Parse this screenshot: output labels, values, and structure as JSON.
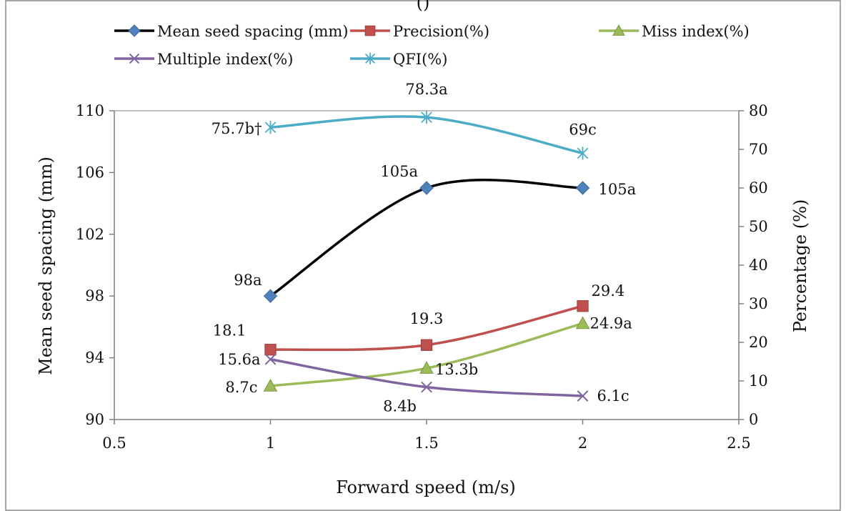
{
  "chart_data": {
    "type": "line",
    "title": "",
    "top_fragment": "()",
    "xlabel": "Forward speed   (m/s)",
    "ylabel_left": "Mean seed spacing (mm)",
    "ylabel_right": "Percentage (%)",
    "xlim": [
      0.5,
      2.5
    ],
    "x_ticks": [
      0.5,
      1,
      1.5,
      2,
      2.5
    ],
    "x_tick_labels": [
      "0.5",
      "1",
      "1.5",
      "2",
      "2.5"
    ],
    "ylim_left": [
      90,
      110
    ],
    "y_left_ticks": [
      90,
      94,
      98,
      102,
      106,
      110
    ],
    "y_left_tick_labels": [
      "90",
      "94",
      "98",
      "102",
      "106",
      "110"
    ],
    "ylim_right": [
      0,
      80
    ],
    "y_right_ticks": [
      0,
      10,
      20,
      30,
      40,
      50,
      60,
      70,
      80
    ],
    "y_right_tick_labels": [
      "0",
      "10",
      "20",
      "30",
      "40",
      "50",
      "60",
      "70",
      "80"
    ],
    "grid": false,
    "legend_position": "top",
    "smooth": true,
    "x": [
      1,
      1.5,
      2
    ],
    "series": [
      {
        "name": "Mean seed spacing (mm)",
        "axis": "left",
        "values": [
          98,
          105,
          105
        ],
        "labels": [
          "98a",
          "105a",
          "105a"
        ],
        "color": "#000000",
        "marker": "diamond",
        "marker_color": "#4F81BD"
      },
      {
        "name": "Precision(%)",
        "axis": "right",
        "values": [
          18.1,
          19.3,
          29.4
        ],
        "labels": [
          "18.1",
          "19.3",
          "29.4"
        ],
        "color": "#C0504D",
        "marker": "square",
        "marker_color": "#C0504D"
      },
      {
        "name": "Miss index(%)",
        "axis": "right",
        "values": [
          8.7,
          13.3,
          24.9
        ],
        "labels": [
          "8.7c",
          "13.3b",
          "24.9a"
        ],
        "color": "#9BBB59",
        "marker": "triangle",
        "marker_color": "#9BBB59"
      },
      {
        "name": "Multiple index(%)",
        "axis": "right",
        "values": [
          15.6,
          8.4,
          6.1
        ],
        "labels": [
          "15.6a",
          "8.4b",
          "6.1c"
        ],
        "color": "#8064A2",
        "marker": "x",
        "marker_color": "#8064A2"
      },
      {
        "name": "QFI(%)",
        "axis": "right",
        "values": [
          75.7,
          78.3,
          69
        ],
        "labels": [
          "75.7b†",
          "78.3a",
          "69c"
        ],
        "color": "#4BACC6",
        "marker": "asterisk",
        "marker_color": "#4BACC6"
      }
    ]
  }
}
